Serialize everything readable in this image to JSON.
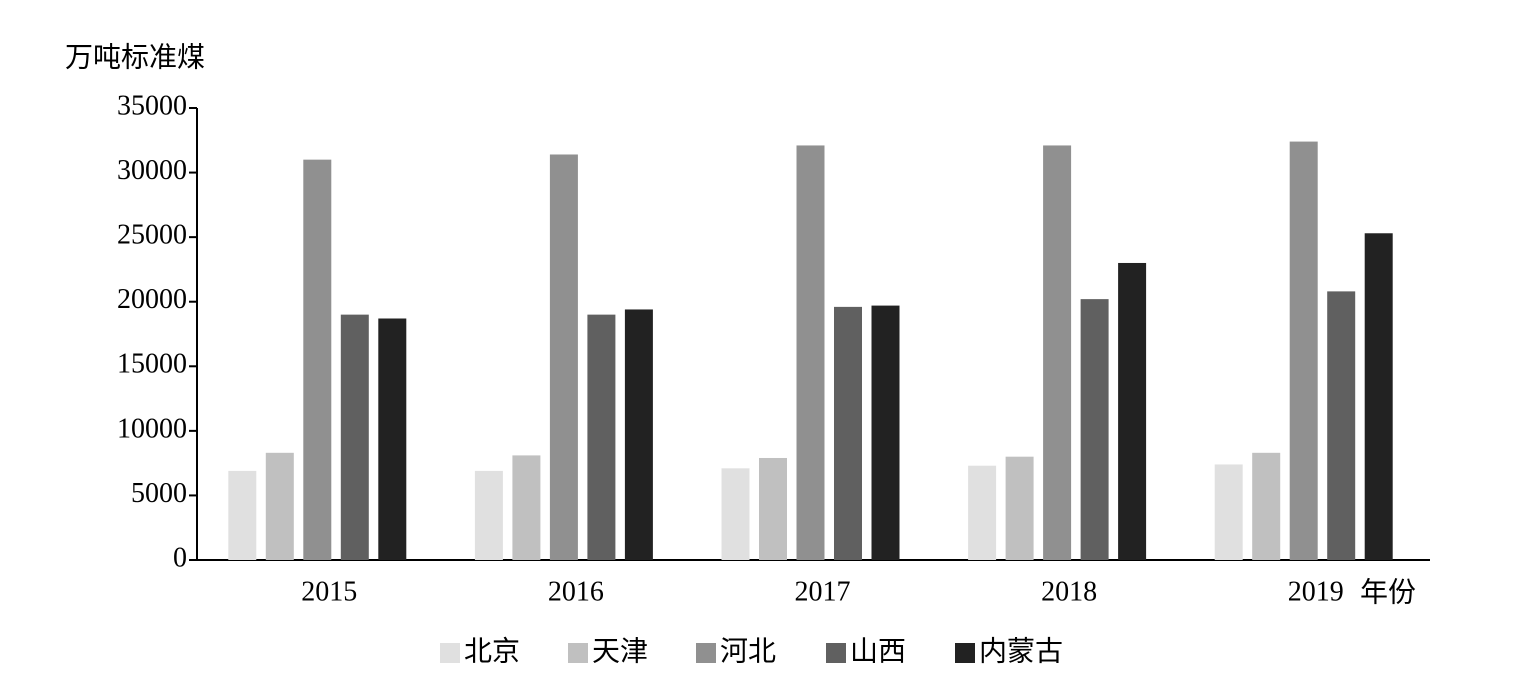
{
  "chart_data": {
    "type": "bar",
    "y_label": "万吨标准煤",
    "x_label": "年份",
    "categories": [
      "2015",
      "2016",
      "2017",
      "2018",
      "2019"
    ],
    "series": [
      {
        "name": "北京",
        "color": "#e0e0e0",
        "values": [
          6900,
          6900,
          7100,
          7300,
          7400
        ]
      },
      {
        "name": "天津",
        "color": "#c0c0c0",
        "values": [
          8300,
          8100,
          7900,
          8000,
          8300
        ]
      },
      {
        "name": "河北",
        "color": "#909090",
        "values": [
          31000,
          31400,
          32100,
          32100,
          32400
        ]
      },
      {
        "name": "山西",
        "color": "#606060",
        "values": [
          19000,
          19000,
          19600,
          20200,
          20800
        ]
      },
      {
        "name": "内蒙古",
        "color": "#222222",
        "values": [
          18700,
          19400,
          19700,
          23000,
          25300
        ]
      }
    ],
    "ylim": [
      0,
      35000
    ],
    "yticks": [
      0,
      5000,
      10000,
      15000,
      20000,
      25000,
      30000,
      35000
    ]
  }
}
